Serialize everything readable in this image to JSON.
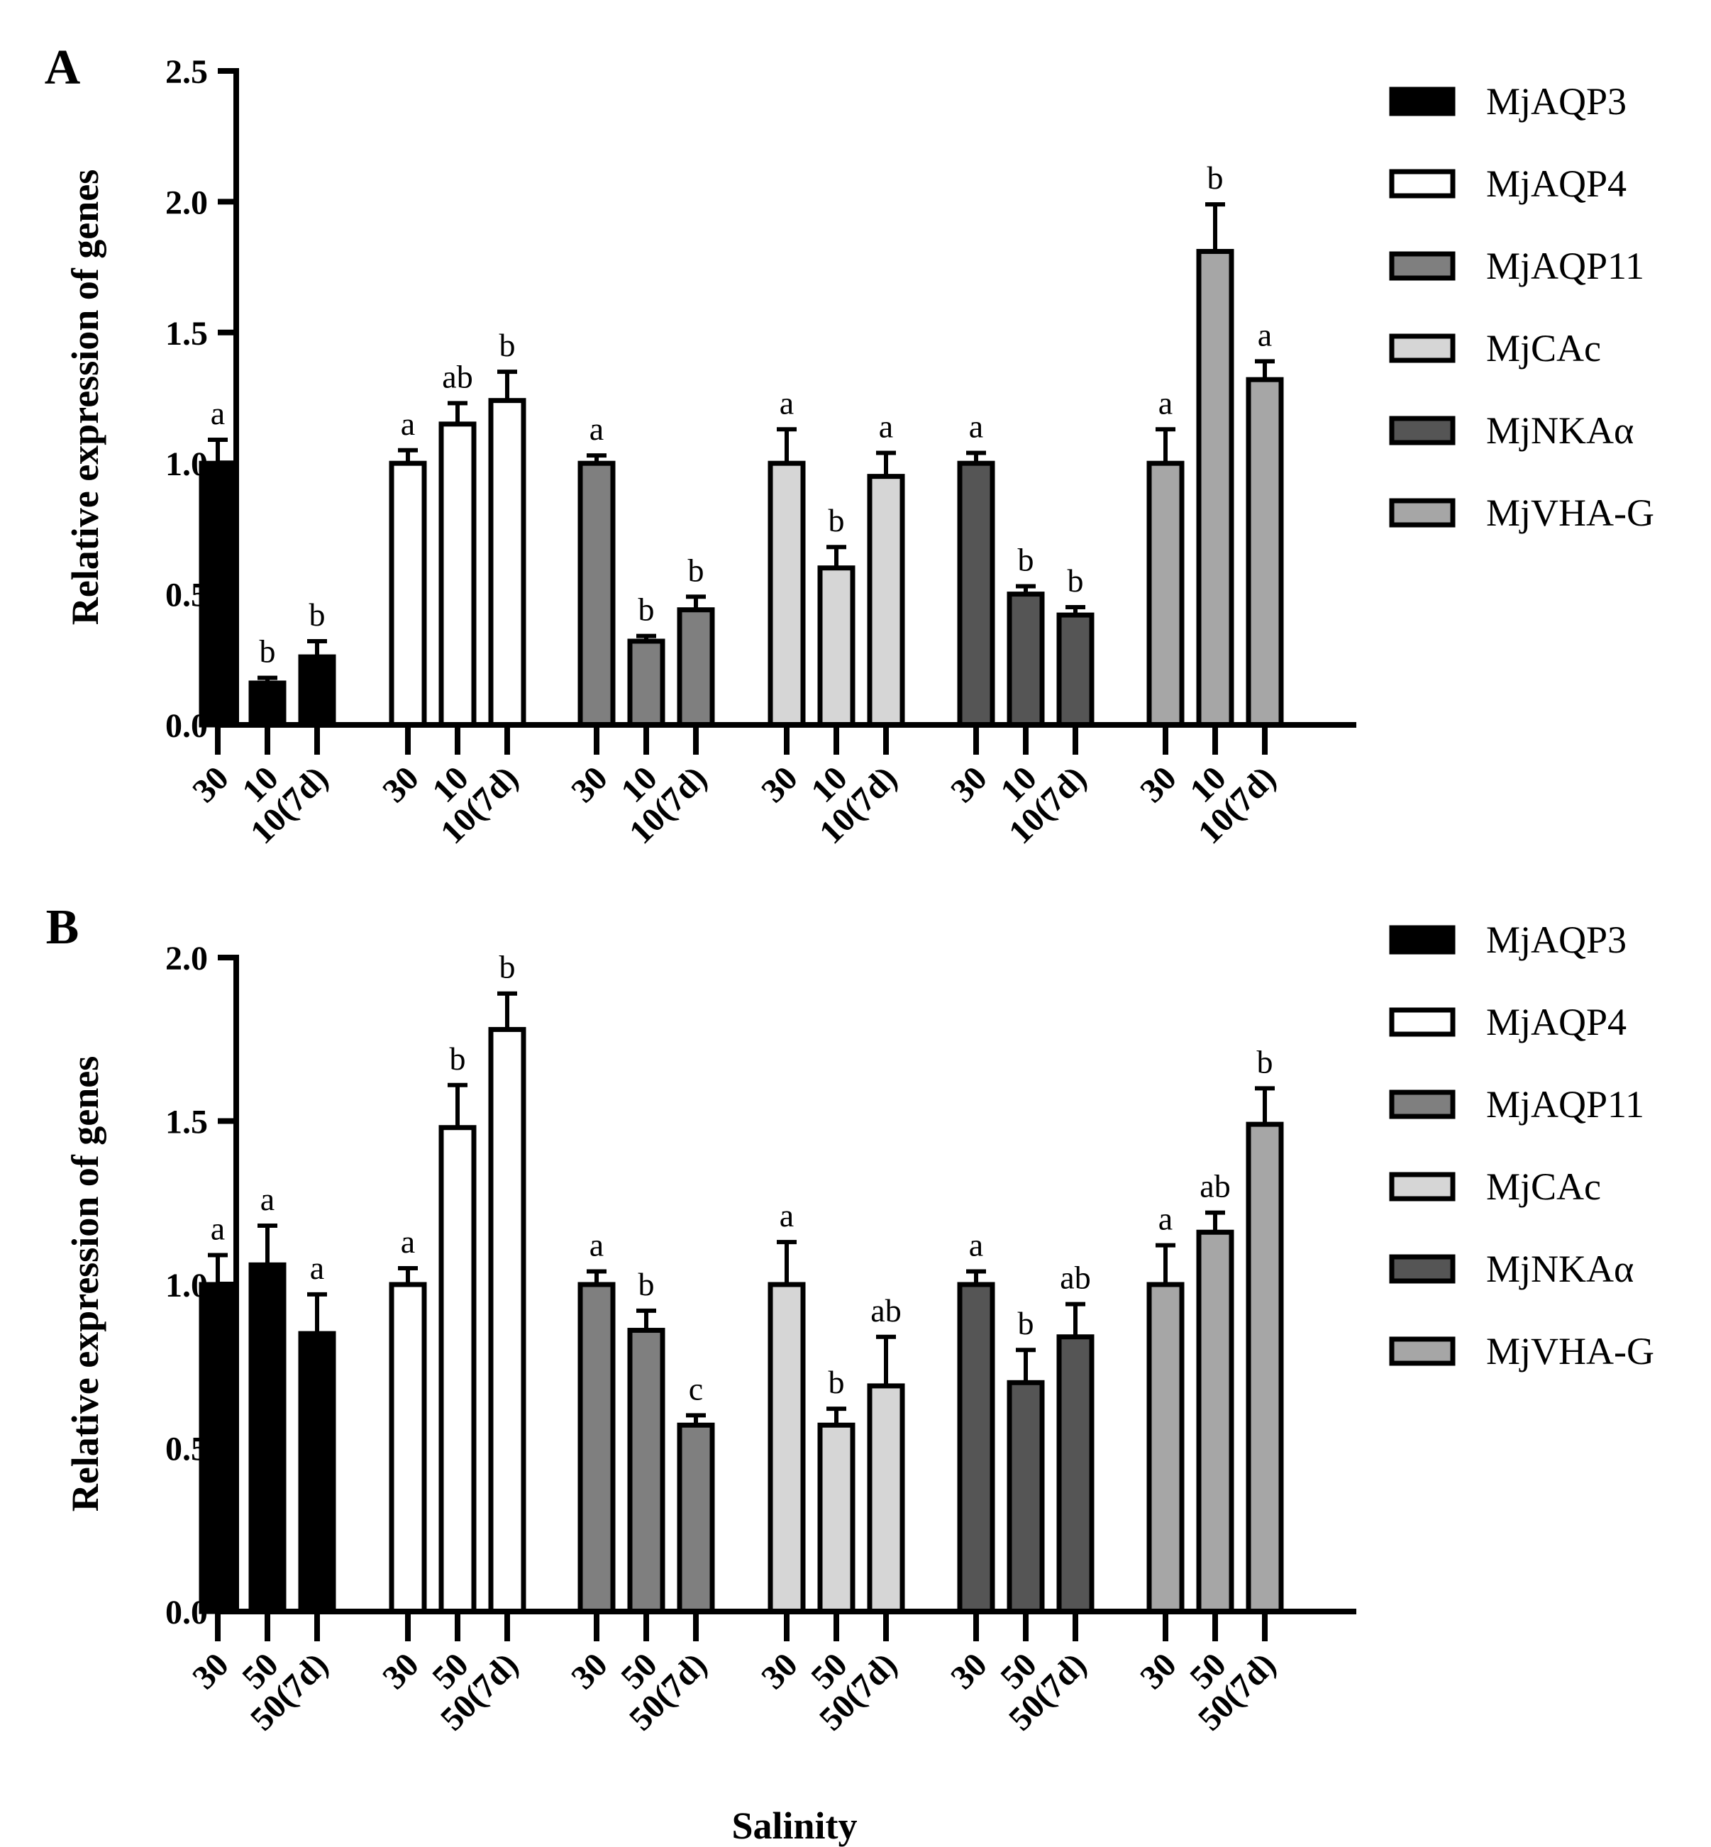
{
  "figure": {
    "xlabel": "Salinity"
  },
  "chart_data": [
    {
      "panel_label": "A",
      "type": "bar",
      "ylabel": "Relative expression of genes",
      "ylim": [
        0,
        2.5
      ],
      "yticks": [
        "0.0",
        "0.5",
        "1.0",
        "1.5",
        "2.0",
        "2.5"
      ],
      "grid": false,
      "legend_position": "top-right",
      "categories": [
        "30",
        "10",
        "10(7d)"
      ],
      "series": [
        {
          "name": "MjAQP3",
          "fill": "#000000",
          "values": [
            1.0,
            0.16,
            0.26
          ],
          "errors": [
            0.09,
            0.02,
            0.06
          ],
          "letters": [
            "a",
            "b",
            "b"
          ]
        },
        {
          "name": "MjAQP4",
          "fill": "#ffffff",
          "values": [
            1.0,
            1.15,
            1.24
          ],
          "errors": [
            0.05,
            0.08,
            0.11
          ],
          "letters": [
            "a",
            "ab",
            "b"
          ]
        },
        {
          "name": "MjAQP11",
          "fill": "#7f7f7f",
          "values": [
            1.0,
            0.32,
            0.44
          ],
          "errors": [
            0.03,
            0.02,
            0.05
          ],
          "letters": [
            "a",
            "b",
            "b"
          ]
        },
        {
          "name": "MjCAc",
          "fill": "#d6d6d6",
          "values": [
            1.0,
            0.6,
            0.95
          ],
          "errors": [
            0.13,
            0.08,
            0.09
          ],
          "letters": [
            "a",
            "b",
            "a"
          ]
        },
        {
          "name": "MjNKAα",
          "fill": "#555555",
          "values": [
            1.0,
            0.5,
            0.42
          ],
          "errors": [
            0.04,
            0.03,
            0.03
          ],
          "letters": [
            "a",
            "b",
            "b"
          ]
        },
        {
          "name": "MjVHA-G",
          "fill": "#a6a6a6",
          "values": [
            1.0,
            1.81,
            1.32
          ],
          "errors": [
            0.13,
            0.18,
            0.07
          ],
          "letters": [
            "a",
            "b",
            "a"
          ]
        }
      ]
    },
    {
      "panel_label": "B",
      "type": "bar",
      "ylabel": "Relative expression of genes",
      "ylim": [
        0,
        2.0
      ],
      "yticks": [
        "0.0",
        "0.5",
        "1.0",
        "1.5",
        "2.0"
      ],
      "grid": false,
      "legend_position": "top-right",
      "categories": [
        "30",
        "50",
        "50(7d)"
      ],
      "series": [
        {
          "name": "MjAQP3",
          "fill": "#000000",
          "values": [
            1.0,
            1.06,
            0.85
          ],
          "errors": [
            0.09,
            0.12,
            0.12
          ],
          "letters": [
            "a",
            "a",
            "a"
          ]
        },
        {
          "name": "MjAQP4",
          "fill": "#ffffff",
          "values": [
            1.0,
            1.48,
            1.78
          ],
          "errors": [
            0.05,
            0.13,
            0.11
          ],
          "letters": [
            "a",
            "b",
            "b"
          ]
        },
        {
          "name": "MjAQP11",
          "fill": "#7f7f7f",
          "values": [
            1.0,
            0.86,
            0.57
          ],
          "errors": [
            0.04,
            0.06,
            0.03
          ],
          "letters": [
            "a",
            "b",
            "c"
          ]
        },
        {
          "name": "MjCAc",
          "fill": "#d6d6d6",
          "values": [
            1.0,
            0.57,
            0.69
          ],
          "errors": [
            0.13,
            0.05,
            0.15
          ],
          "letters": [
            "a",
            "b",
            "ab"
          ]
        },
        {
          "name": "MjNKAα",
          "fill": "#555555",
          "values": [
            1.0,
            0.7,
            0.84
          ],
          "errors": [
            0.04,
            0.1,
            0.1
          ],
          "letters": [
            "a",
            "b",
            "ab"
          ]
        },
        {
          "name": "MjVHA-G",
          "fill": "#a6a6a6",
          "values": [
            1.0,
            1.16,
            1.49
          ],
          "errors": [
            0.12,
            0.06,
            0.11
          ],
          "letters": [
            "a",
            "ab",
            "b"
          ]
        }
      ]
    }
  ]
}
